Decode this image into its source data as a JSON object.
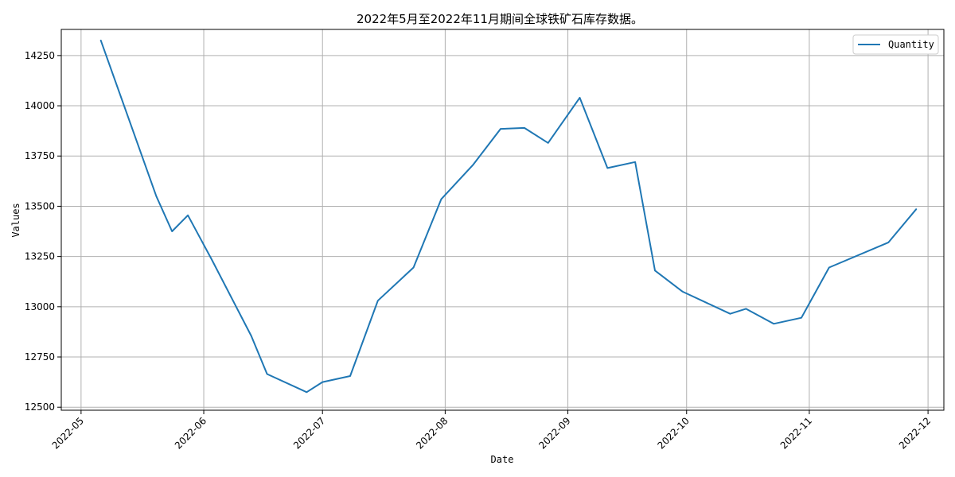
{
  "chart_data": {
    "type": "line",
    "title": "2022年5月至2022年11月期间全球铁矿石库存数据。",
    "xlabel": "Date",
    "ylabel": "Values",
    "legend": "top-right",
    "grid": true,
    "ylim": [
      12485,
      14380
    ],
    "xlim": [
      "2022-04-26",
      "2022-12-05"
    ],
    "y_ticks": [
      12500,
      12750,
      13000,
      13250,
      13500,
      13750,
      14000,
      14250
    ],
    "x_ticks": [
      "2022-05-01",
      "2022-06-01",
      "2022-07-01",
      "2022-08-01",
      "2022-09-01",
      "2022-10-01",
      "2022-11-01",
      "2022-12-01"
    ],
    "x_tick_labels": [
      "2022-05",
      "2022-06",
      "2022-07",
      "2022-08",
      "2022-09",
      "2022-10",
      "2022-11",
      "2022-12"
    ],
    "series": [
      {
        "name": "Quantity",
        "color": "#1f77b4",
        "x": [
          "2022-05-06",
          "2022-05-20",
          "2022-05-24",
          "2022-05-28",
          "2022-06-03",
          "2022-06-13",
          "2022-06-17",
          "2022-06-27",
          "2022-07-01",
          "2022-07-08",
          "2022-07-15",
          "2022-07-24",
          "2022-07-31",
          "2022-08-08",
          "2022-08-15",
          "2022-08-21",
          "2022-08-27",
          "2022-09-04",
          "2022-09-11",
          "2022-09-18",
          "2022-09-23",
          "2022-09-30",
          "2022-10-12",
          "2022-10-16",
          "2022-10-23",
          "2022-10-30",
          "2022-11-06",
          "2022-11-21",
          "2022-11-28"
        ],
        "values": [
          14325,
          13550,
          13375,
          13455,
          13235,
          12855,
          12665,
          12575,
          12625,
          12655,
          13030,
          13195,
          13535,
          13705,
          13885,
          13890,
          13815,
          14040,
          13690,
          13720,
          13180,
          13075,
          12965,
          12990,
          12915,
          12945,
          13195,
          13320,
          13485
        ]
      }
    ]
  }
}
